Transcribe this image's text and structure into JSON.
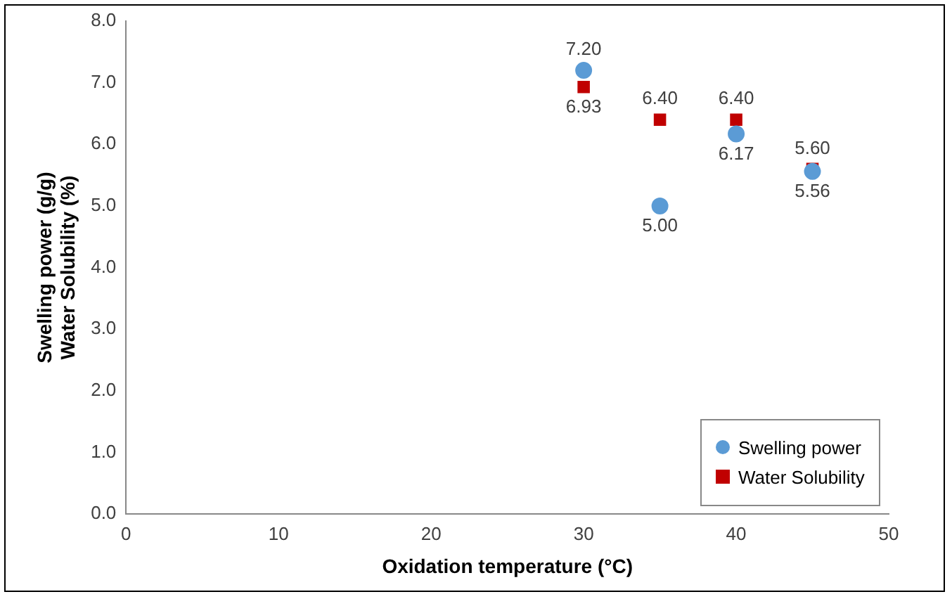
{
  "chart_data": {
    "type": "scatter",
    "xlabel": "Oxidation temperature (°C)",
    "ylabel": "Swelling power (g/g)\nWater Solubility (%)",
    "xlim": [
      0,
      50
    ],
    "xticks": [
      0,
      10,
      20,
      30,
      40,
      50
    ],
    "ylim": [
      0,
      8
    ],
    "yticks": [
      {
        "value": 0,
        "label": "0.0"
      },
      {
        "value": 1,
        "label": "1.0"
      },
      {
        "value": 2,
        "label": "2.0"
      },
      {
        "value": 3,
        "label": "3.0"
      },
      {
        "value": 4,
        "label": "4.0"
      },
      {
        "value": 5,
        "label": "5.0"
      },
      {
        "value": 6,
        "label": "6.0"
      },
      {
        "value": 7,
        "label": "7.0"
      },
      {
        "value": 8,
        "label": "8.0"
      }
    ],
    "grid": false,
    "legend": "bottom right",
    "series": [
      {
        "name": "Swelling power",
        "color": "#5b9bd5",
        "marker": "circle",
        "x": [
          30,
          35,
          40,
          45
        ],
        "values": [
          7.2,
          5.0,
          6.17,
          5.56
        ],
        "value_labels": [
          "7.20",
          "5.00",
          "6.17",
          "5.56"
        ]
      },
      {
        "name": "Water Solubility",
        "color": "#c00000",
        "marker": "square",
        "x": [
          30,
          35,
          40,
          45
        ],
        "values": [
          6.93,
          6.4,
          6.4,
          5.6
        ],
        "value_labels": [
          "6.93",
          "6.40",
          "6.40",
          "5.60"
        ]
      }
    ]
  }
}
